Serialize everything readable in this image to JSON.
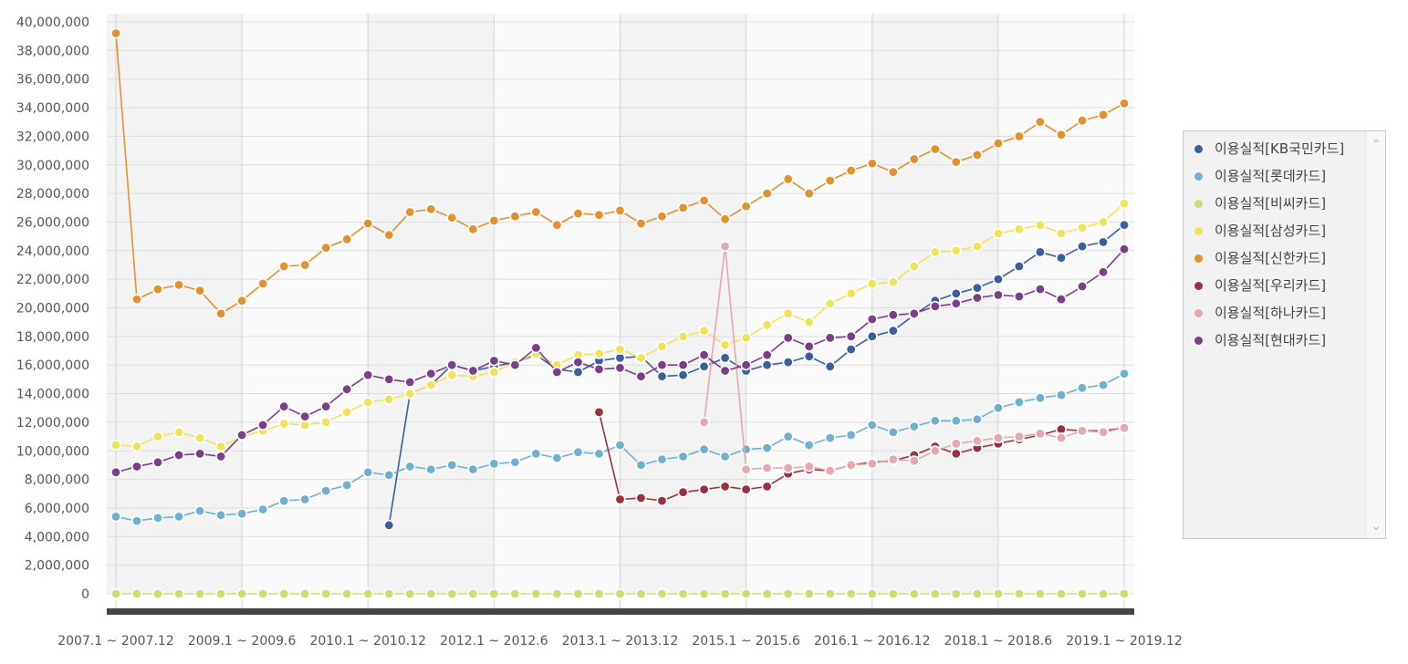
{
  "chart_data": {
    "type": "line",
    "title": "",
    "xlabel": "",
    "ylabel": "",
    "ylim": [
      0,
      40000000
    ],
    "y_ticks": [
      0,
      2000000,
      4000000,
      6000000,
      8000000,
      10000000,
      12000000,
      14000000,
      16000000,
      18000000,
      20000000,
      22000000,
      24000000,
      26000000,
      28000000,
      30000000,
      32000000,
      34000000,
      36000000,
      38000000,
      40000000
    ],
    "y_tick_labels": [
      "0",
      "2,000,000",
      "4,000,000",
      "6,000,000",
      "8,000,000",
      "10,000,000",
      "12,000,000",
      "14,000,000",
      "16,000,000",
      "18,000,000",
      "20,000,000",
      "22,000,000",
      "24,000,000",
      "26,000,000",
      "28,000,000",
      "30,000,000",
      "32,000,000",
      "34,000,000",
      "36,000,000",
      "38,000,000",
      "40,000,000"
    ],
    "x_count": 49,
    "x_tick_labels": [
      {
        "index": 0,
        "label": "2007.1 ~ 2007.12"
      },
      {
        "index": 6,
        "label": "2009.1 ~ 2009.6"
      },
      {
        "index": 12,
        "label": "2010.1 ~ 2010.12"
      },
      {
        "index": 18,
        "label": "2012.1 ~ 2012.6"
      },
      {
        "index": 24,
        "label": "2013.1 ~ 2013.12"
      },
      {
        "index": 30,
        "label": "2015.1 ~ 2015.6"
      },
      {
        "index": 36,
        "label": "2016.1 ~ 2016.12"
      },
      {
        "index": 42,
        "label": "2018.1 ~ 2018.6"
      },
      {
        "index": 48,
        "label": "2019.1 ~ 2019.12"
      }
    ],
    "grid": true,
    "legend_position": "right",
    "series": [
      {
        "name": "이용실적[KB국민카드]",
        "color": "#3b5e9e",
        "values": [
          null,
          null,
          null,
          null,
          null,
          null,
          null,
          null,
          null,
          null,
          null,
          null,
          null,
          4800000,
          14000000,
          14600000,
          16000000,
          15600000,
          15900000,
          16200000,
          16700000,
          15700000,
          15500000,
          16300000,
          16500000,
          16600000,
          15200000,
          15300000,
          15900000,
          16500000,
          15600000,
          16000000,
          16200000,
          16600000,
          15900000,
          17100000,
          18000000,
          18400000,
          19500000,
          20500000,
          21000000,
          21400000,
          22000000,
          22900000,
          23900000,
          23500000,
          24300000,
          24600000,
          25800000
        ]
      },
      {
        "name": "이용실적[롯데카드]",
        "color": "#6fb0d2",
        "values": [
          5400000,
          5100000,
          5300000,
          5400000,
          5800000,
          5500000,
          5600000,
          5900000,
          6500000,
          6600000,
          7200000,
          7600000,
          8500000,
          8300000,
          8900000,
          8700000,
          9000000,
          8700000,
          9100000,
          9200000,
          9800000,
          9500000,
          9900000,
          9800000,
          10400000,
          9000000,
          9400000,
          9600000,
          10100000,
          9600000,
          10100000,
          10200000,
          11000000,
          10400000,
          10900000,
          11100000,
          11800000,
          11300000,
          11700000,
          12100000,
          12100000,
          12200000,
          13000000,
          13400000,
          13700000,
          13900000,
          14400000,
          14600000,
          15400000
        ]
      },
      {
        "name": "이용실적[비씨카드]",
        "color": "#cfdc6f",
        "values": [
          0,
          0,
          0,
          0,
          0,
          0,
          0,
          0,
          0,
          0,
          0,
          0,
          0,
          0,
          0,
          0,
          0,
          0,
          0,
          0,
          0,
          0,
          0,
          0,
          0,
          0,
          0,
          0,
          0,
          0,
          0,
          0,
          0,
          0,
          0,
          0,
          0,
          0,
          0,
          0,
          0,
          0,
          0,
          0,
          0,
          0,
          0,
          0,
          0
        ]
      },
      {
        "name": "이용실적[삼성카드]",
        "color": "#f1e25b",
        "values": [
          10400000,
          10300000,
          11000000,
          11300000,
          10900000,
          10300000,
          11000000,
          11400000,
          11900000,
          11800000,
          12000000,
          12700000,
          13400000,
          13600000,
          14000000,
          14600000,
          15300000,
          15200000,
          15500000,
          16200000,
          16800000,
          16000000,
          16700000,
          16800000,
          17100000,
          16500000,
          17300000,
          18000000,
          18400000,
          17400000,
          17900000,
          18800000,
          19600000,
          19000000,
          20300000,
          21000000,
          21700000,
          21800000,
          22900000,
          23900000,
          24000000,
          24300000,
          25200000,
          25500000,
          25800000,
          25200000,
          25600000,
          26000000,
          27300000
        ]
      },
      {
        "name": "이용실적[신한카드]",
        "color": "#e3902e",
        "values": [
          39200000,
          20600000,
          21300000,
          21600000,
          21200000,
          19600000,
          20500000,
          21700000,
          22900000,
          23000000,
          24200000,
          24800000,
          25900000,
          25100000,
          26700000,
          26900000,
          26300000,
          25500000,
          26100000,
          26400000,
          26700000,
          25800000,
          26600000,
          26500000,
          26800000,
          25900000,
          26400000,
          27000000,
          27500000,
          26200000,
          27100000,
          28000000,
          29000000,
          28000000,
          28900000,
          29600000,
          30100000,
          29500000,
          30400000,
          31100000,
          30200000,
          30700000,
          31500000,
          32000000,
          33000000,
          32100000,
          33100000,
          33500000,
          34300000
        ]
      },
      {
        "name": "이용실적[우리카드]",
        "color": "#9c3040",
        "values": [
          null,
          null,
          null,
          null,
          null,
          null,
          null,
          null,
          null,
          null,
          null,
          null,
          null,
          null,
          null,
          null,
          null,
          null,
          null,
          null,
          null,
          null,
          null,
          12700000,
          6600000,
          6700000,
          6500000,
          7100000,
          7300000,
          7500000,
          7300000,
          7500000,
          8400000,
          8700000,
          8600000,
          9000000,
          9200000,
          9300000,
          9700000,
          10300000,
          9800000,
          10200000,
          10500000,
          10800000,
          11100000,
          11500000,
          11400000,
          11400000,
          11600000
        ]
      },
      {
        "name": "이용실적[하나카드]",
        "color": "#e6a8ad",
        "values": [
          null,
          null,
          null,
          null,
          null,
          null,
          null,
          null,
          null,
          null,
          null,
          null,
          null,
          null,
          null,
          null,
          null,
          null,
          null,
          null,
          null,
          null,
          null,
          null,
          null,
          null,
          null,
          null,
          12000000,
          24300000,
          8700000,
          8800000,
          8800000,
          8900000,
          8600000,
          9000000,
          9100000,
          9400000,
          9300000,
          10000000,
          10500000,
          10700000,
          10900000,
          11000000,
          11200000,
          10900000,
          11400000,
          11300000,
          11600000
        ]
      },
      {
        "name": "이용실적[현대카드]",
        "color": "#7b3f8a",
        "values": [
          8500000,
          8900000,
          9200000,
          9700000,
          9800000,
          9600000,
          11100000,
          11800000,
          13100000,
          12400000,
          13100000,
          14300000,
          15300000,
          15000000,
          14800000,
          15400000,
          16000000,
          15600000,
          16300000,
          16000000,
          17200000,
          15500000,
          16200000,
          15700000,
          15800000,
          15200000,
          16000000,
          16000000,
          16700000,
          15600000,
          16000000,
          16700000,
          17900000,
          17300000,
          17900000,
          18000000,
          19200000,
          19500000,
          19600000,
          20100000,
          20300000,
          20700000,
          20900000,
          20800000,
          21300000,
          20600000,
          21500000,
          22500000,
          24100000
        ]
      }
    ]
  },
  "legend": {
    "items": [
      {
        "label": "이용실적[KB국민카드]",
        "color": "#3b5e9e"
      },
      {
        "label": "이용실적[롯데카드]",
        "color": "#6fb0d2"
      },
      {
        "label": "이용실적[비씨카드]",
        "color": "#cfdc6f"
      },
      {
        "label": "이용실적[삼성카드]",
        "color": "#f1e25b"
      },
      {
        "label": "이용실적[신한카드]",
        "color": "#e3902e"
      },
      {
        "label": "이용실적[우리카드]",
        "color": "#9c3040"
      },
      {
        "label": "이용실적[하나카드]",
        "color": "#e6a8ad"
      },
      {
        "label": "이용실적[현대카드]",
        "color": "#7b3f8a"
      }
    ],
    "scroll_up_icon": "chevron-up-icon",
    "scroll_down_icon": "chevron-down-icon"
  }
}
